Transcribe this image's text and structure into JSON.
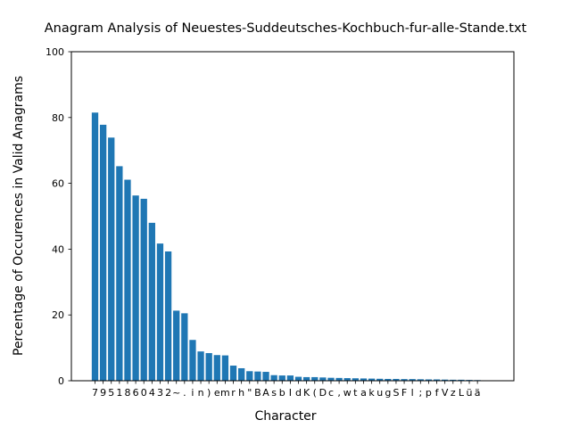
{
  "chart_data": {
    "type": "bar",
    "title": "Anagram Analysis of Neuestes-Suddeutsches-Kochbuch-fur-alle-Stande.txt",
    "xlabel": "Character",
    "ylabel": "Percentage of Occurences in Valid Anagrams",
    "ylim": [
      0,
      100
    ],
    "yticks": [
      "0",
      "20",
      "40",
      "60",
      "80",
      "100"
    ],
    "grid": false,
    "legend": "none",
    "bar_color": "#1f77b4",
    "categories": [
      "7",
      "9",
      "5",
      "1",
      "8",
      "6",
      "0",
      "4",
      "3",
      "2",
      "~",
      ".",
      "i",
      "n",
      ")",
      "e",
      "m",
      "r",
      "h",
      "\"",
      "B",
      "A",
      "s",
      "b",
      "I",
      "d",
      "K",
      "(",
      "D",
      "c",
      ",",
      "w",
      "t",
      "a",
      "k",
      "u",
      "g",
      "S",
      "F",
      "l",
      ";",
      "p",
      "f",
      "V",
      "z",
      "L",
      "ü",
      "ä"
    ],
    "values": [
      81.5,
      77.8,
      73.9,
      65.2,
      61.1,
      56.3,
      55.3,
      48.0,
      41.7,
      39.3,
      21.3,
      20.5,
      12.4,
      8.9,
      8.4,
      7.8,
      7.7,
      4.6,
      3.8,
      2.9,
      2.8,
      2.7,
      1.7,
      1.6,
      1.6,
      1.2,
      1.1,
      1.1,
      1.0,
      0.9,
      0.85,
      0.8,
      0.75,
      0.7,
      0.65,
      0.6,
      0.55,
      0.55,
      0.5,
      0.5,
      0.45,
      0.4,
      0.4,
      0.35,
      0.3,
      0.3,
      0.25,
      0.2
    ]
  }
}
